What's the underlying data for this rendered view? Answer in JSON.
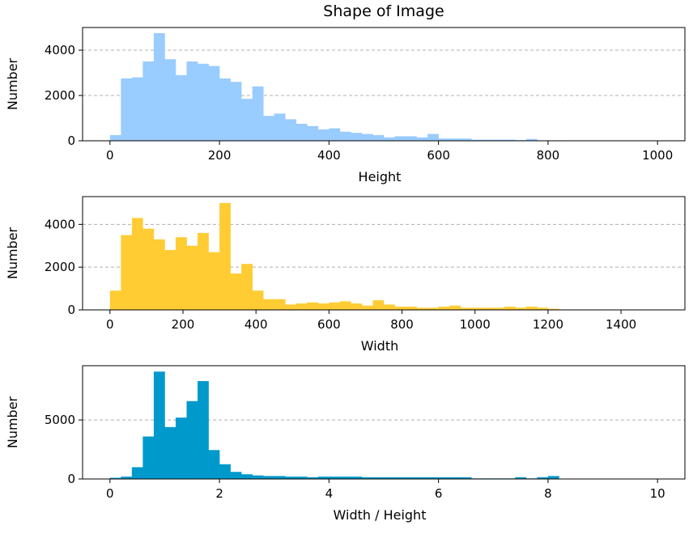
{
  "figure": {
    "title": "Shape of Image"
  },
  "chart_data": [
    {
      "type": "bar",
      "subtype": "histogram",
      "title": "Shape of Image",
      "xlabel": "Height",
      "ylabel": "Number",
      "color": "#99CCFF",
      "grid": "y-dashed",
      "xlim": [
        -50,
        1050
      ],
      "ylim": [
        0,
        5000
      ],
      "xticks": [
        0,
        200,
        400,
        600,
        800,
        1000
      ],
      "yticks": [
        0,
        2000,
        4000
      ],
      "bin_edges": [
        0,
        20,
        40,
        60,
        80,
        100,
        120,
        140,
        160,
        180,
        200,
        220,
        240,
        260,
        280,
        300,
        320,
        340,
        360,
        380,
        400,
        420,
        440,
        460,
        480,
        500,
        520,
        540,
        560,
        580,
        600,
        620,
        640,
        660,
        680,
        700,
        720,
        740,
        760,
        780,
        800,
        820,
        840,
        860,
        880,
        900,
        920,
        940,
        960,
        980,
        1000
      ],
      "values": [
        250,
        2750,
        2800,
        3500,
        4750,
        3600,
        2900,
        3500,
        3400,
        3300,
        2750,
        2600,
        1850,
        2400,
        1100,
        1200,
        950,
        750,
        650,
        500,
        550,
        400,
        350,
        300,
        250,
        150,
        200,
        200,
        150,
        300,
        100,
        100,
        100,
        50,
        50,
        50,
        50,
        30,
        80,
        20,
        20,
        20,
        10,
        10,
        10,
        10,
        10,
        10,
        10,
        10
      ]
    },
    {
      "type": "bar",
      "subtype": "histogram",
      "xlabel": "Width",
      "ylabel": "Number",
      "color": "#FFCC33",
      "grid": "y-dashed",
      "xlim": [
        -75,
        1575
      ],
      "ylim": [
        0,
        5300
      ],
      "xticks": [
        0,
        200,
        400,
        600,
        800,
        1000,
        1200,
        1400
      ],
      "yticks": [
        0,
        2000,
        4000
      ],
      "bin_edges": [
        0,
        30,
        60,
        90,
        120,
        150,
        180,
        210,
        240,
        270,
        300,
        330,
        360,
        390,
        420,
        450,
        480,
        510,
        540,
        570,
        600,
        630,
        660,
        690,
        720,
        750,
        780,
        810,
        840,
        870,
        900,
        930,
        960,
        990,
        1020,
        1050,
        1080,
        1110,
        1140,
        1170,
        1200,
        1230,
        1260,
        1290,
        1320,
        1350,
        1380,
        1410,
        1440,
        1470,
        1500
      ],
      "values": [
        900,
        3500,
        4300,
        3800,
        3300,
        2800,
        3400,
        3000,
        3600,
        2700,
        5000,
        1700,
        2150,
        900,
        500,
        500,
        250,
        300,
        350,
        300,
        350,
        400,
        300,
        200,
        450,
        250,
        150,
        150,
        100,
        100,
        150,
        200,
        100,
        100,
        100,
        100,
        150,
        100,
        150,
        100,
        50,
        20,
        10,
        10,
        10,
        10,
        10,
        10,
        10,
        10
      ]
    },
    {
      "type": "bar",
      "subtype": "histogram",
      "xlabel": "Width / Height",
      "ylabel": "Number",
      "color": "#0099CC",
      "grid": "y-dashed",
      "xlim": [
        -0.5,
        10.5
      ],
      "ylim": [
        0,
        9600
      ],
      "xticks": [
        0,
        2,
        4,
        6,
        8,
        10
      ],
      "yticks": [
        0,
        5000
      ],
      "bin_edges": [
        0,
        0.2,
        0.4,
        0.6,
        0.8,
        1.0,
        1.2,
        1.4,
        1.6,
        1.8,
        2.0,
        2.2,
        2.4,
        2.6,
        2.8,
        3.0,
        3.2,
        3.4,
        3.6,
        3.8,
        4.0,
        4.2,
        4.4,
        4.6,
        4.8,
        5.0,
        5.2,
        5.4,
        5.6,
        5.8,
        6.0,
        6.2,
        6.4,
        6.6,
        6.8,
        7.0,
        7.2,
        7.4,
        7.6,
        7.8,
        8.0,
        8.2,
        8.4,
        8.6,
        8.8,
        9.0,
        9.2,
        9.4,
        9.6,
        9.8,
        10.0
      ],
      "values": [
        100,
        200,
        1000,
        3600,
        9100,
        4400,
        5200,
        6600,
        8300,
        2450,
        1250,
        600,
        400,
        300,
        250,
        250,
        200,
        200,
        150,
        200,
        200,
        200,
        200,
        150,
        150,
        150,
        150,
        150,
        150,
        150,
        150,
        150,
        150,
        50,
        50,
        50,
        50,
        150,
        50,
        150,
        250,
        30,
        20,
        20,
        20,
        20,
        20,
        20,
        20,
        20
      ]
    }
  ]
}
